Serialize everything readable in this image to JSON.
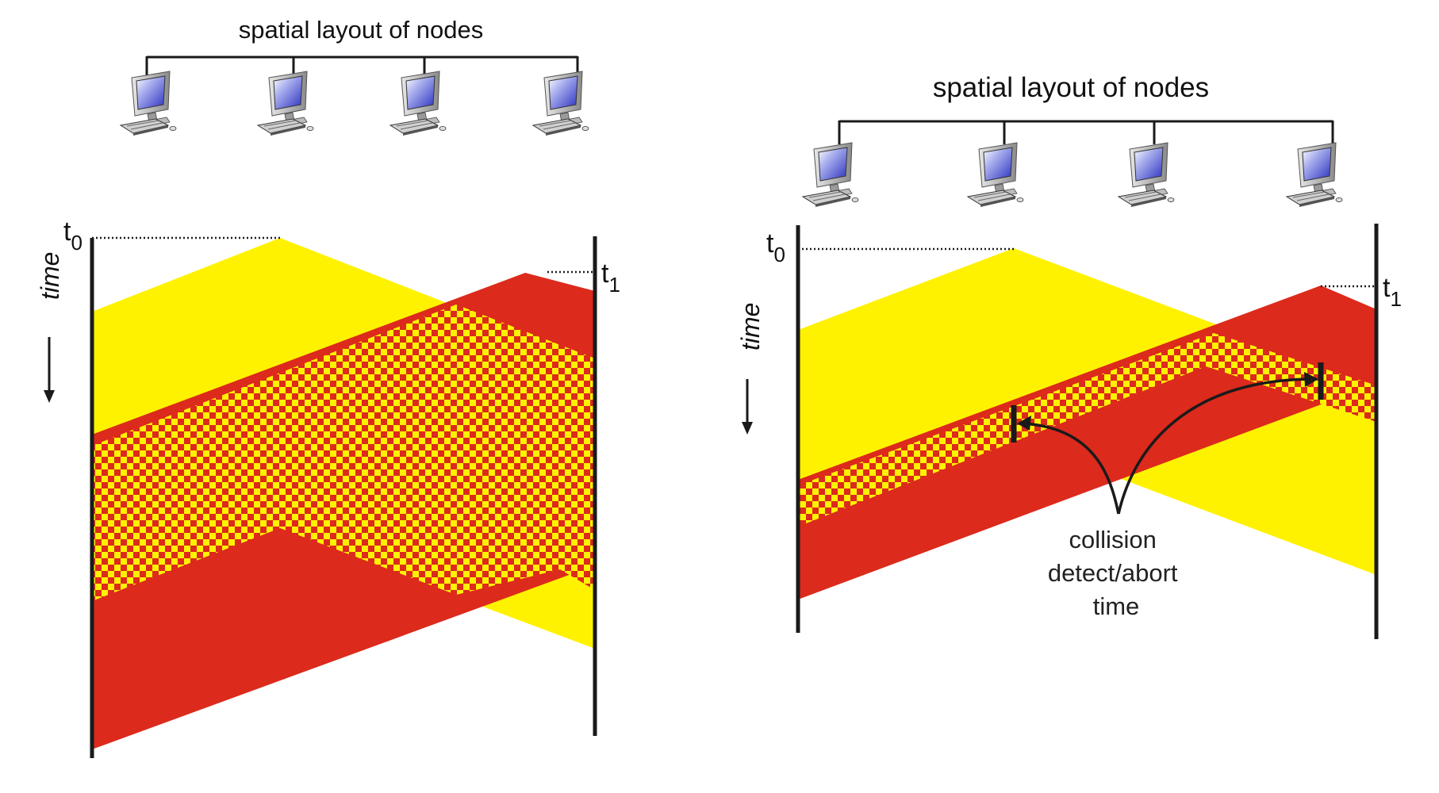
{
  "colors": {
    "node_a": "#fff200",
    "node_b": "#dc2a1c",
    "line": "#1a1a1a"
  },
  "left_panel": {
    "title": "spatial layout of nodes",
    "time_label": "time",
    "t0": {
      "base": "t",
      "sub": "0"
    },
    "t1": {
      "base": "t",
      "sub": "1"
    },
    "node_icons": [
      "computer-icon",
      "computer-icon",
      "computer-icon",
      "computer-icon"
    ]
  },
  "right_panel": {
    "title": "spatial layout of nodes",
    "time_label": "time",
    "t0": {
      "base": "t",
      "sub": "0"
    },
    "t1": {
      "base": "t",
      "sub": "1"
    },
    "node_icons": [
      "computer-icon",
      "computer-icon",
      "computer-icon",
      "computer-icon"
    ],
    "annotation_lines": [
      "collision",
      "detect/abort",
      "time"
    ]
  }
}
